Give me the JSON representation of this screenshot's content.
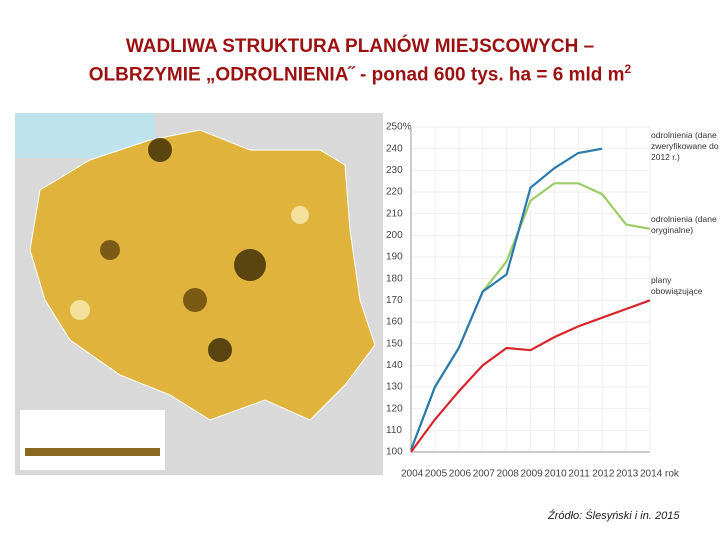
{
  "title_lines": [
    "WADLIWA STRUKTURA PLANÓW MIEJSCOWYCH –",
    "OLBRZYMIE „ODROLNIENIA˝ - ponad 600 tys. ha = 6 mld m"
  ],
  "title_exponent": "2",
  "source": "Źródło: Ślesyński i in. 2015",
  "chart_data": {
    "type": "line",
    "categories": [
      "2004",
      "2005",
      "2006",
      "2007",
      "2008",
      "2009",
      "2010",
      "2011",
      "2012",
      "2013",
      "2014 rok"
    ],
    "ylim": [
      100,
      250
    ],
    "yticks": [
      100,
      110,
      120,
      130,
      140,
      150,
      160,
      170,
      180,
      190,
      200,
      210,
      220,
      230,
      240,
      {
        "value": 250,
        "label": "250%"
      }
    ],
    "grid": true,
    "series": [
      {
        "name": "odrolnienia (dane zweryfikowane do 2012 r.)",
        "color": "#2a7ab0",
        "values": [
          101,
          130,
          148,
          174,
          182,
          222,
          231,
          238,
          240,
          null,
          null
        ]
      },
      {
        "name": "odrolnienia (dane oryginalne)",
        "color": "#9ccc65",
        "values": [
          101,
          130,
          148,
          174,
          188,
          216,
          224,
          224,
          219,
          205,
          203
        ]
      },
      {
        "name": "plany obowiązujące",
        "color": "#d7262b",
        "values": [
          100,
          115,
          128,
          140,
          148,
          147,
          153,
          158,
          162,
          166,
          170
        ]
      }
    ]
  }
}
